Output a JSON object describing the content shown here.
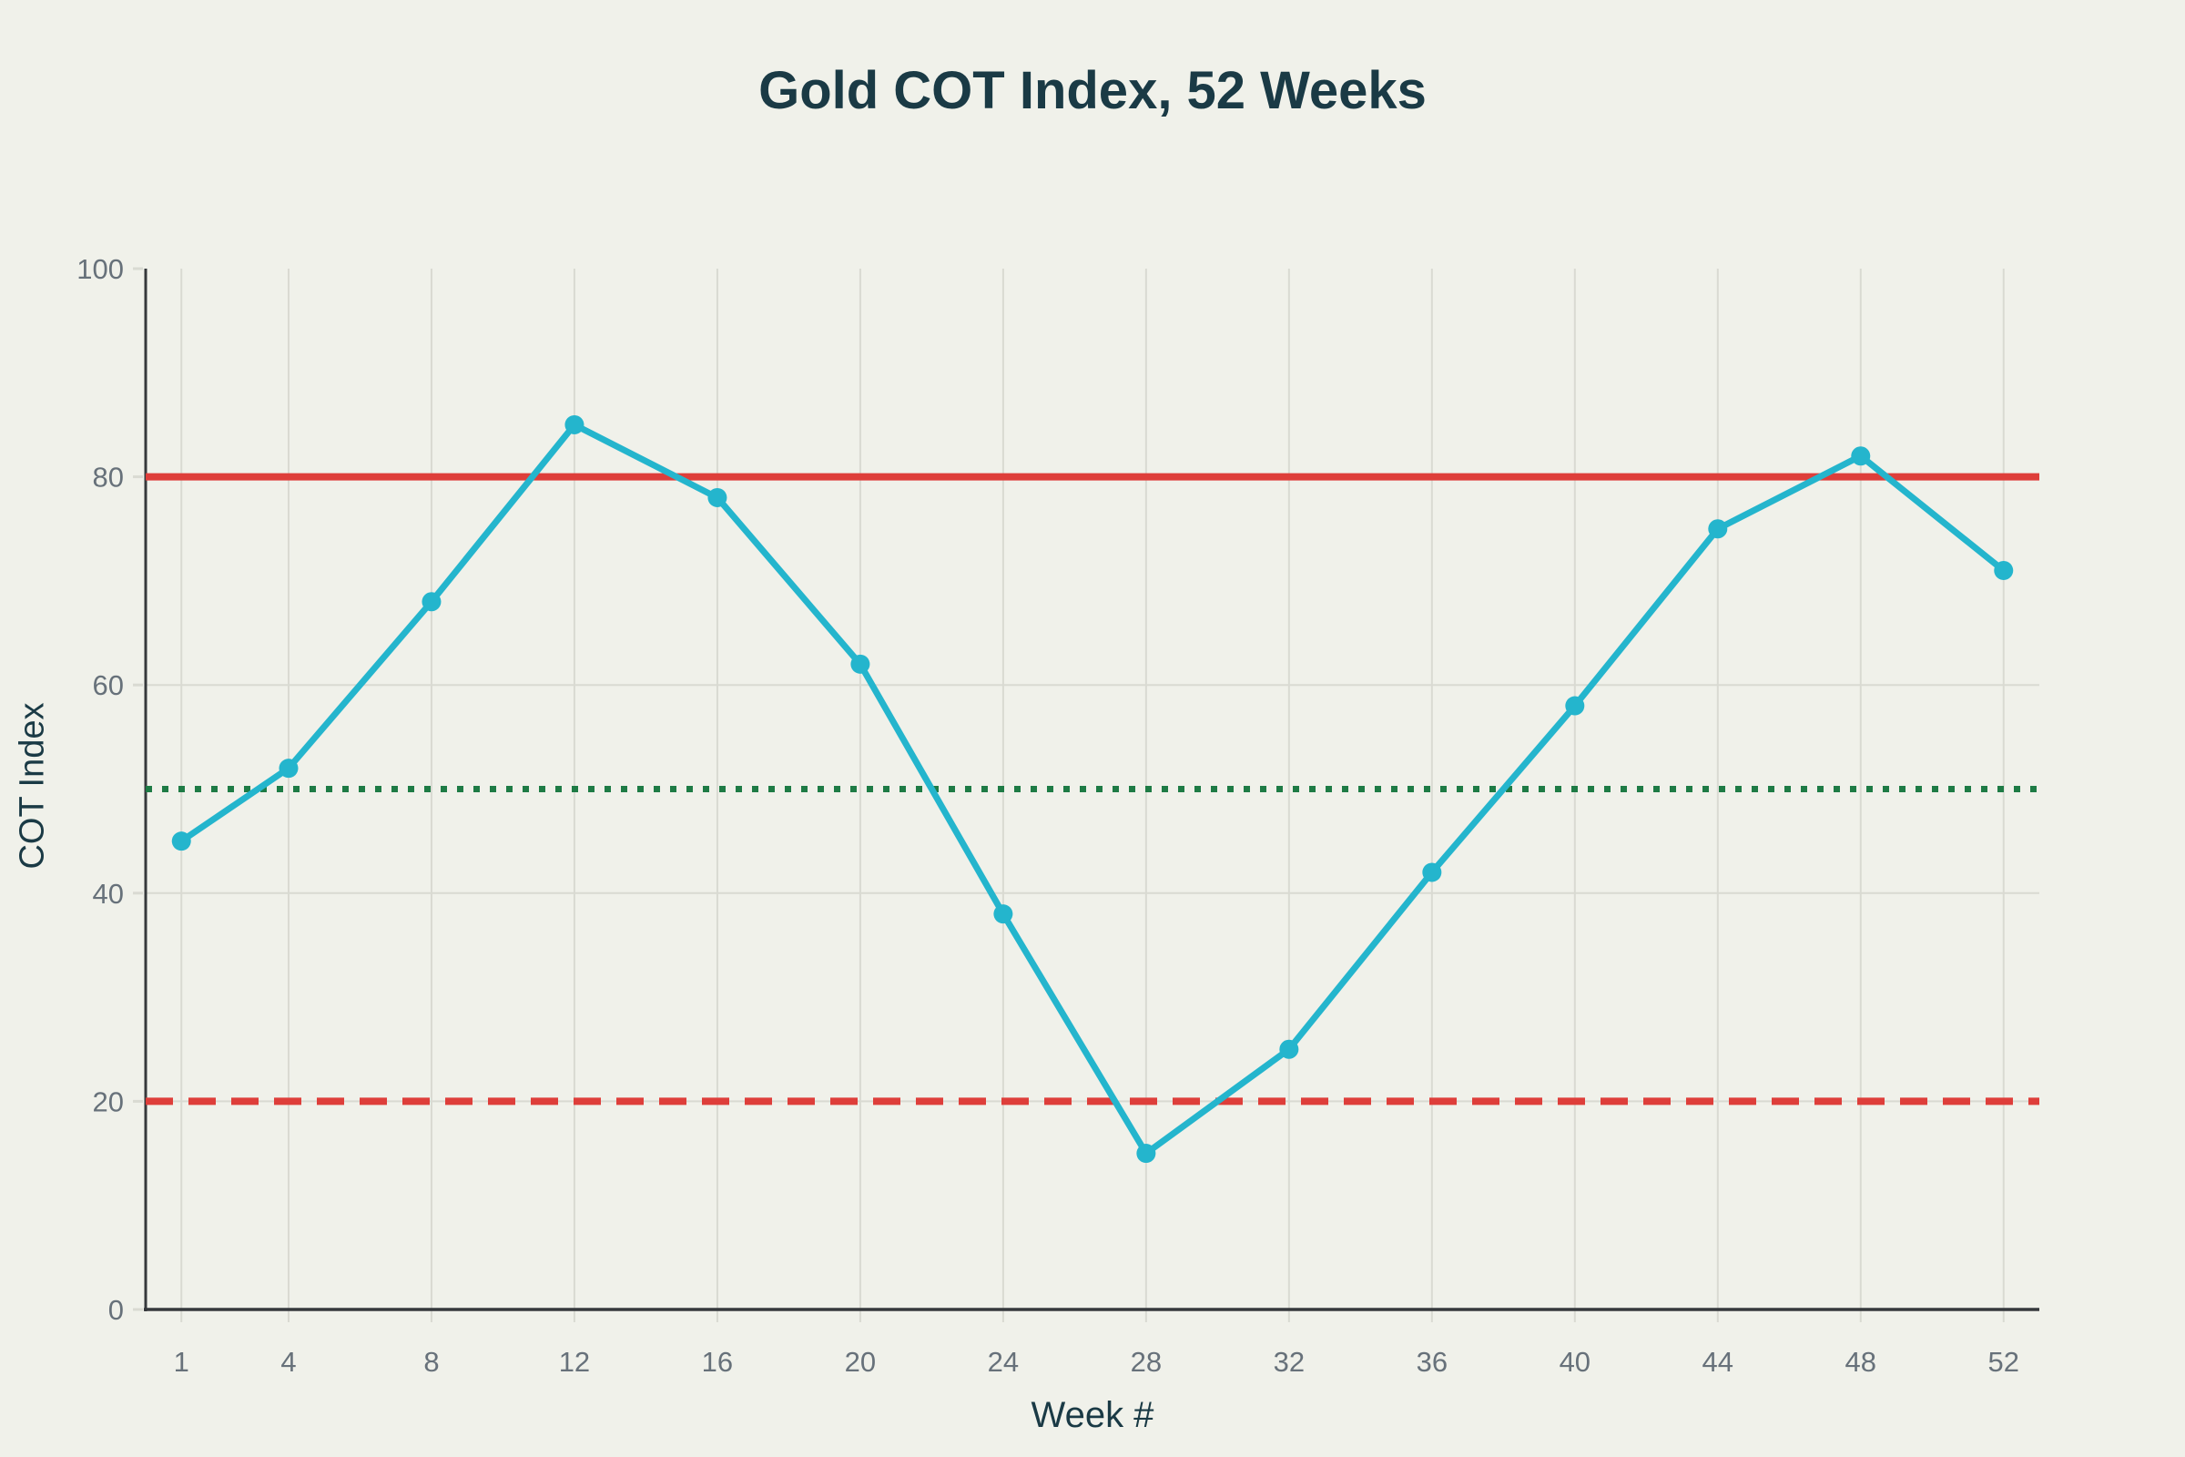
{
  "chart": {
    "title": "Gold COT Index, 52 Weeks",
    "xlabel": "Week #",
    "ylabel": "COT Index"
  },
  "chart_data": {
    "type": "line",
    "title": "Gold COT Index, 52 Weeks",
    "xlabel": "Week #",
    "ylabel": "COT Index",
    "x": [
      1,
      4,
      8,
      12,
      16,
      20,
      24,
      28,
      32,
      36,
      40,
      44,
      48,
      52
    ],
    "series": [
      {
        "name": "COT Index",
        "values": [
          45,
          52,
          68,
          85,
          78,
          62,
          38,
          15,
          25,
          42,
          58,
          75,
          82,
          71
        ],
        "color": "#24b5cd",
        "marker": "circle"
      }
    ],
    "reference_lines": [
      {
        "value": 80,
        "style": "solid",
        "color": "#de3e3a"
      },
      {
        "value": 50,
        "style": "dotted",
        "color": "#1e7b45"
      },
      {
        "value": 20,
        "style": "dashed",
        "color": "#de3e3a"
      }
    ],
    "xticks": [
      1,
      4,
      8,
      12,
      16,
      20,
      24,
      28,
      32,
      36,
      40,
      44,
      48,
      52
    ],
    "yticks": [
      0,
      20,
      40,
      60,
      80,
      100
    ],
    "xlim": [
      0,
      53
    ],
    "ylim": [
      0,
      100
    ],
    "grid": true,
    "legend": false,
    "colors": {
      "background": "#f0f1ea",
      "grid": "#d9dad2",
      "axis_spine": "#36393c",
      "tick_text": "#67717a",
      "title_text": "#1a3a45"
    }
  }
}
